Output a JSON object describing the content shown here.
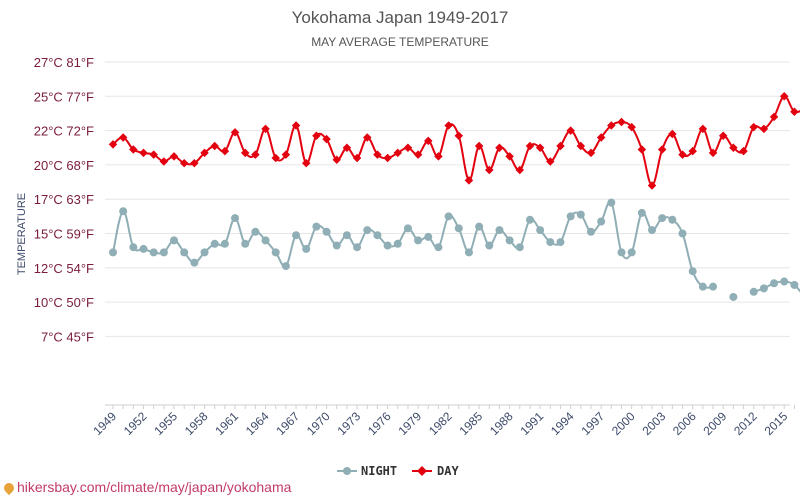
{
  "chart_data": {
    "type": "line",
    "title": "Yokohama Japan 1949-2017",
    "subtitle": "MAY AVERAGE TEMPERATURE",
    "ylabel": "TEMPERATURE",
    "ylim": [
      7,
      27
    ],
    "y_ticks": [
      {
        "value": 27,
        "label": "27°C 81°F"
      },
      {
        "value": 25,
        "label": "25°C 77°F"
      },
      {
        "value": 23,
        "label": "22°C 72°F"
      },
      {
        "value": 21,
        "label": "20°C 68°F"
      },
      {
        "value": 19,
        "label": "17°C 63°F"
      },
      {
        "value": 17,
        "label": "15°C 59°F"
      },
      {
        "value": 15,
        "label": "12°C 54°F"
      },
      {
        "value": 13,
        "label": "10°C 50°F"
      },
      {
        "value": 11,
        "label": "7°C 45°F"
      }
    ],
    "x": [
      1949,
      1950,
      1951,
      1952,
      1953,
      1954,
      1955,
      1956,
      1957,
      1958,
      1959,
      1960,
      1961,
      1962,
      1963,
      1964,
      1965,
      1966,
      1967,
      1968,
      1969,
      1970,
      1971,
      1972,
      1973,
      1974,
      1975,
      1976,
      1977,
      1978,
      1979,
      1980,
      1981,
      1982,
      1983,
      1984,
      1985,
      1986,
      1987,
      1988,
      1989,
      1990,
      1991,
      1992,
      1993,
      1994,
      1995,
      1996,
      1997,
      1998,
      1999,
      2000,
      2001,
      2002,
      2003,
      2004,
      2005,
      2006,
      2007,
      2008,
      2009,
      2010,
      2011,
      2012,
      2013,
      2014,
      2015,
      2016,
      2017
    ],
    "x_tick_labels": [
      "1949",
      "1952",
      "1955",
      "1958",
      "1961",
      "1964",
      "1967",
      "1970",
      "1973",
      "1976",
      "1979",
      "1982",
      "1985",
      "1988",
      "1991",
      "1994",
      "1997",
      "2000",
      "2003",
      "2006",
      "2009",
      "2012",
      "2015"
    ],
    "series": [
      {
        "name": "DAY",
        "color": "#e3000f",
        "values": [
          22.2,
          22.6,
          21.9,
          21.7,
          21.6,
          21.2,
          21.5,
          21.1,
          21.1,
          21.7,
          22.1,
          21.8,
          22.9,
          21.7,
          21.6,
          23.1,
          21.4,
          21.6,
          23.3,
          21.1,
          22.7,
          22.5,
          21.3,
          22.0,
          21.4,
          22.6,
          21.6,
          21.4,
          21.7,
          22.0,
          21.6,
          22.4,
          21.5,
          23.3,
          22.7,
          20.1,
          22.1,
          20.7,
          22.0,
          21.5,
          20.7,
          22.1,
          22.0,
          21.2,
          22.1,
          23.0,
          22.1,
          21.7,
          22.6,
          23.3,
          23.5,
          23.2,
          21.9,
          19.8,
          21.9,
          22.8,
          21.6,
          21.8,
          23.1,
          21.7,
          22.7,
          22.0,
          21.8,
          23.2,
          23.1,
          23.8,
          25.0,
          24.1,
          24.3
        ]
      },
      {
        "name": "NIGHT",
        "color": "#90aeb5",
        "values": [
          15.9,
          18.3,
          16.2,
          16.1,
          15.9,
          15.9,
          16.6,
          15.9,
          15.3,
          15.9,
          16.4,
          16.4,
          17.9,
          16.4,
          17.1,
          16.6,
          15.9,
          15.1,
          16.9,
          16.1,
          17.4,
          17.1,
          16.3,
          16.9,
          16.2,
          17.2,
          16.9,
          16.3,
          16.4,
          17.3,
          16.6,
          16.8,
          16.2,
          18.0,
          17.3,
          15.9,
          17.4,
          16.3,
          17.2,
          16.6,
          16.2,
          17.8,
          17.2,
          16.5,
          16.5,
          18.0,
          18.1,
          17.1,
          17.7,
          18.8,
          15.9,
          15.9,
          18.2,
          17.2,
          17.9,
          17.8,
          17.0,
          14.8,
          13.9,
          13.9,
          null,
          13.3,
          null,
          13.6,
          13.8,
          14.1,
          14.2,
          14.0,
          13.3
        ]
      }
    ],
    "legend": [
      {
        "label": "NIGHT",
        "color": "#90aeb5"
      },
      {
        "label": "DAY",
        "color": "#e3000f"
      }
    ],
    "grid": true,
    "legend_position": "bottom-center"
  },
  "footer": {
    "source": "hikersbay.com/climate/may/japan/yokohama"
  }
}
